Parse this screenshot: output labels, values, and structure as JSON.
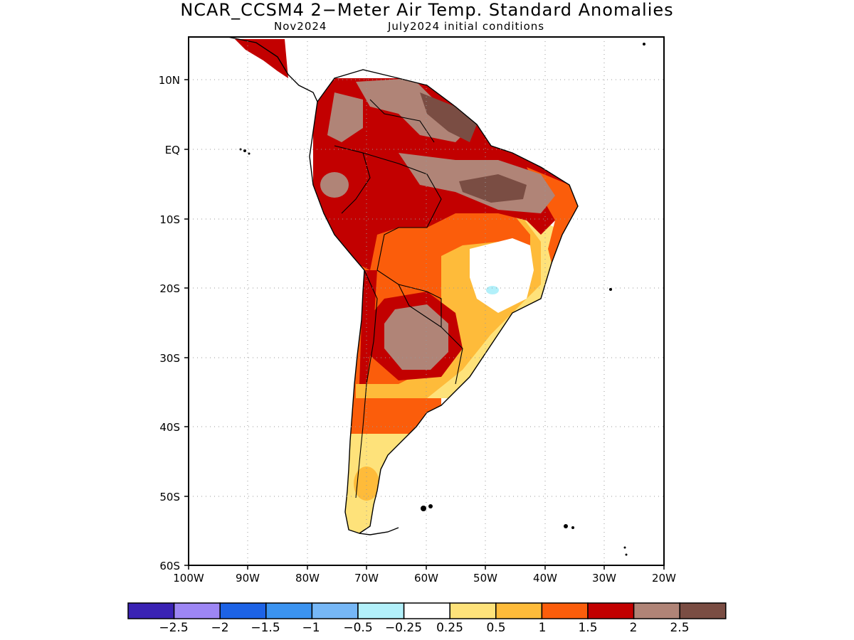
{
  "title": "NCAR_CCSM4 2−Meter Air Temp. Standard Anomalies",
  "subtitle_left": "Nov2024",
  "subtitle_right": "July2024 initial conditions",
  "map": {
    "lat_range": [
      -60,
      15
    ],
    "lon_range": [
      -100,
      -20
    ],
    "lat_ticks": [
      "10N",
      "EQ",
      "10S",
      "20S",
      "30S",
      "40S",
      "50S",
      "60S"
    ],
    "lon_ticks": [
      "100W",
      "90W",
      "80W",
      "70W",
      "60W",
      "50W",
      "40W",
      "30W",
      "20W"
    ],
    "grid": "dotted"
  },
  "legend": {
    "colors": [
      "#3a22b4",
      "#9d86f4",
      "#1d63e6",
      "#3b93f0",
      "#76b7f6",
      "#b2f0fa",
      "#ffffff",
      "#fee27a",
      "#febb3a",
      "#fb5d0b",
      "#c20000",
      "#b08477",
      "#7a4d43"
    ],
    "labels": [
      "−2.5",
      "−2",
      "−1.5",
      "−1",
      "−0.5",
      "−0.25",
      "0.25",
      "0.5",
      "1",
      "1.5",
      "2",
      "2.5"
    ]
  }
}
